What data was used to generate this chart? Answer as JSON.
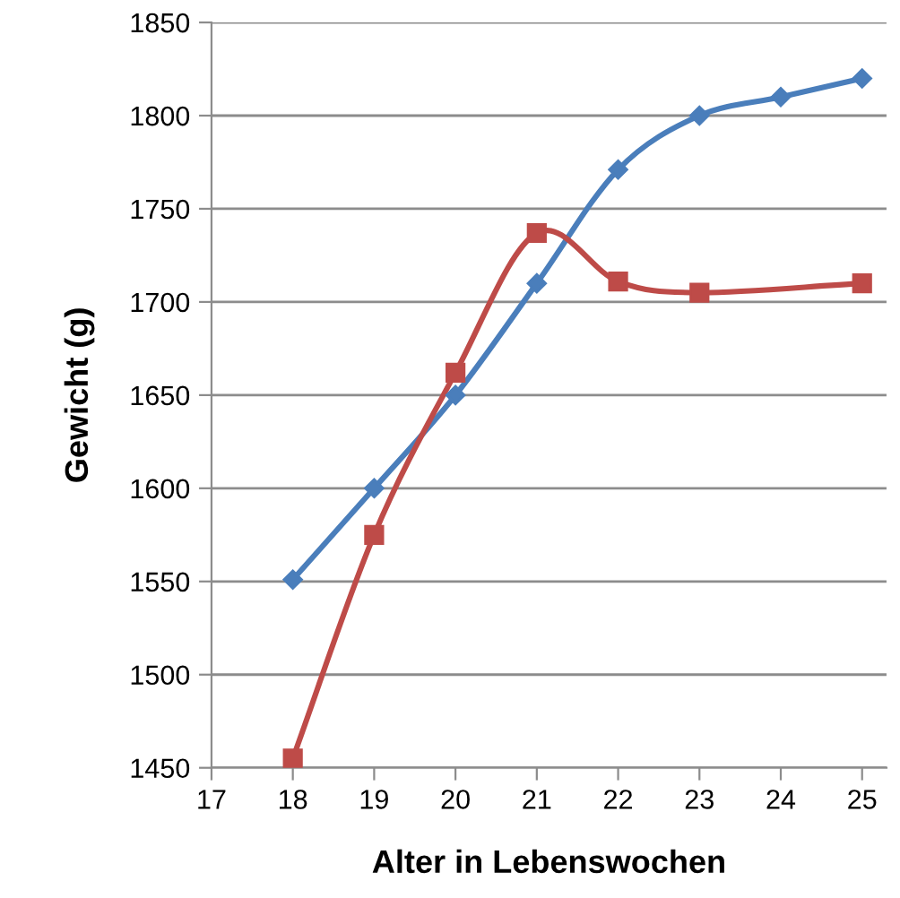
{
  "chart_data": {
    "type": "line",
    "xlabel": "Alter in Lebenswochen",
    "ylabel": "Gewicht (g)",
    "xlim": [
      17,
      25.3
    ],
    "xticks": [
      17,
      18,
      19,
      20,
      21,
      22,
      23,
      24,
      25
    ],
    "ylim": [
      1450,
      1850
    ],
    "yticks": [
      1450,
      1500,
      1550,
      1600,
      1650,
      1700,
      1750,
      1800,
      1850
    ],
    "grid": "y",
    "legend": false,
    "series": [
      {
        "color": "#4a7ebb",
        "marker": "diamond",
        "x": [
          18,
          19,
          20,
          21,
          22,
          23,
          24,
          25
        ],
        "values": [
          1551,
          1600,
          1650,
          1710,
          1771,
          1800,
          1810,
          1820
        ]
      },
      {
        "color": "#be4b48",
        "marker": "square",
        "x": [
          18,
          19,
          20,
          21,
          22,
          23,
          25
        ],
        "values": [
          1455,
          1575,
          1662,
          1737,
          1711,
          1705,
          1710
        ]
      }
    ]
  }
}
